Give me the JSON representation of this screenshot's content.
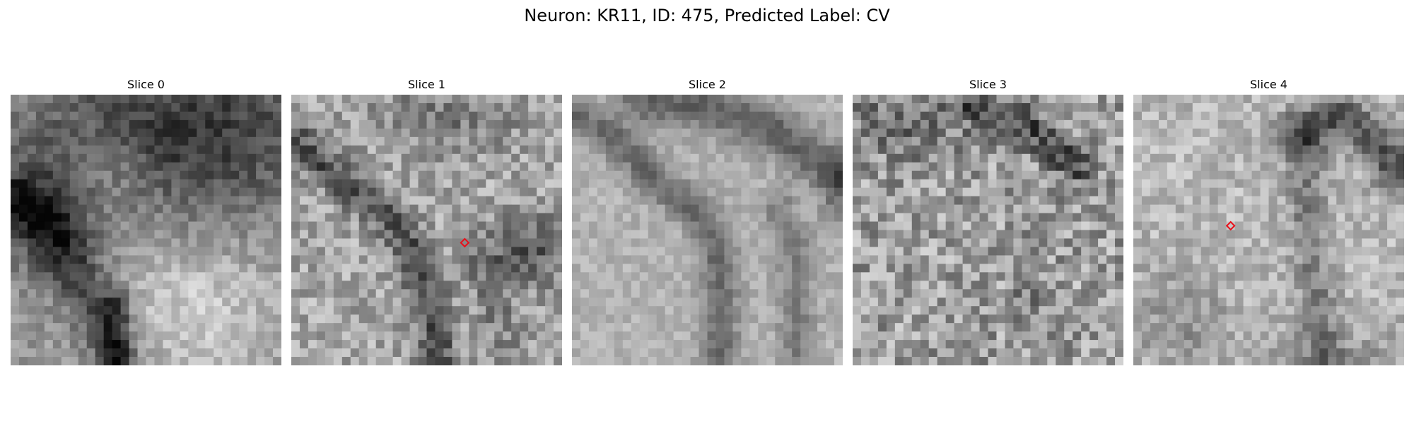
{
  "figure": {
    "title": "Neuron: KR11, ID: 475, Predicted Label: CV"
  },
  "slices": [
    {
      "title": "Slice 0",
      "has_marker": false
    },
    {
      "title": "Slice 1",
      "has_marker": true
    },
    {
      "title": "Slice 2",
      "has_marker": false
    },
    {
      "title": "Slice 3",
      "has_marker": false
    },
    {
      "title": "Slice 4",
      "has_marker": true
    }
  ],
  "marker": {
    "shape": "diamond",
    "color": "#e8101a"
  },
  "colormap": "gray"
}
